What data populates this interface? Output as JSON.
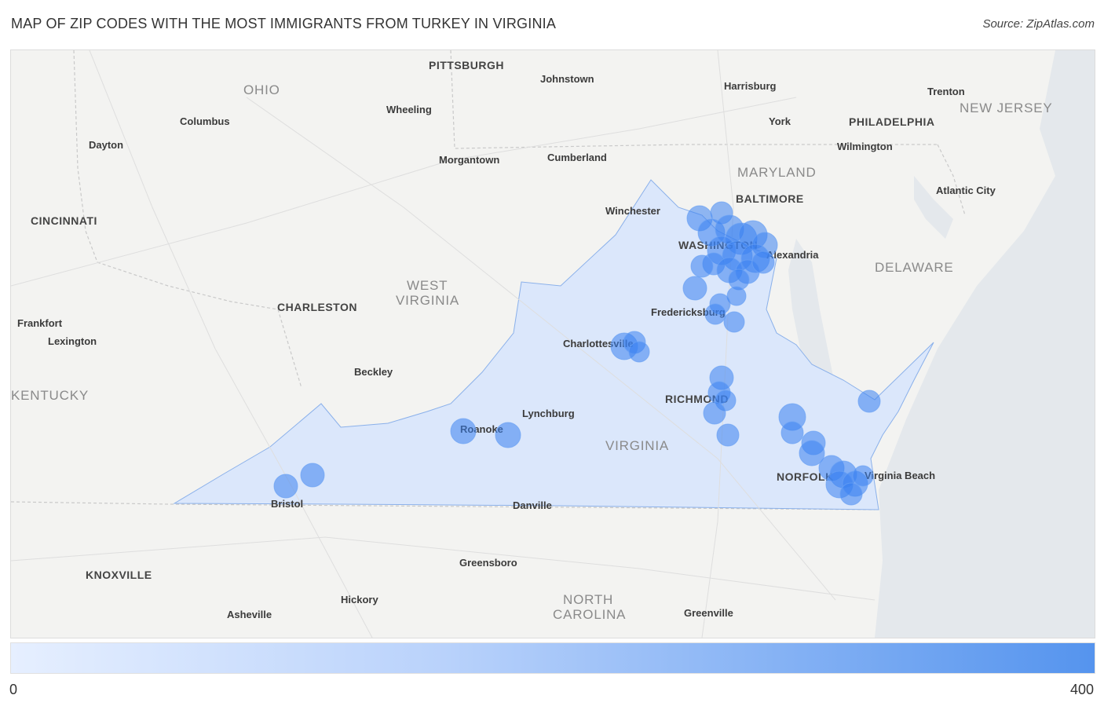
{
  "header": {
    "title": "MAP OF ZIP CODES WITH THE MOST IMMIGRANTS FROM TURKEY IN VIRGINIA",
    "source": "Source: ZipAtlas.com"
  },
  "legend": {
    "min_label": "0",
    "max_label": "400",
    "color_low": "#e6efff",
    "color_high": "#5594ee"
  },
  "colors": {
    "highlight_state_fill": "#dbe7fb",
    "bubble": "#3b82f0",
    "map_background": "#f3f3f1"
  },
  "map": {
    "states": [
      "OHIO",
      "WEST",
      "VIRGINIA",
      "VIRGINIA",
      "MARYLAND",
      "DELAWARE",
      "NEW JERSEY",
      "KENTUCKY",
      "NORTH",
      "CAROLINA"
    ],
    "cities": [
      "PITTSBURGH",
      "Johnstown",
      "Harrisburg",
      "Trenton",
      "Columbus",
      "Wheeling",
      "York",
      "PHILADELPHIA",
      "Dayton",
      "Cumberland",
      "Morgantown",
      "Wilmington",
      "BALTIMORE",
      "Atlantic City",
      "CINCINNATI",
      "Winchester",
      "WASHINGTON",
      "Alexandria",
      "CHARLESTON",
      "Frankfort",
      "Lexington",
      "Fredericksburg",
      "Charlottesville",
      "Beckley",
      "RICHMOND",
      "Lynchburg",
      "Roanoke",
      "NORFOLK",
      "Virginia Beach",
      "Bristol",
      "Danville",
      "Greensboro",
      "KNOXVILLE",
      "Hickory",
      "Asheville",
      "Greenville",
      "Lexington"
    ]
  }
}
